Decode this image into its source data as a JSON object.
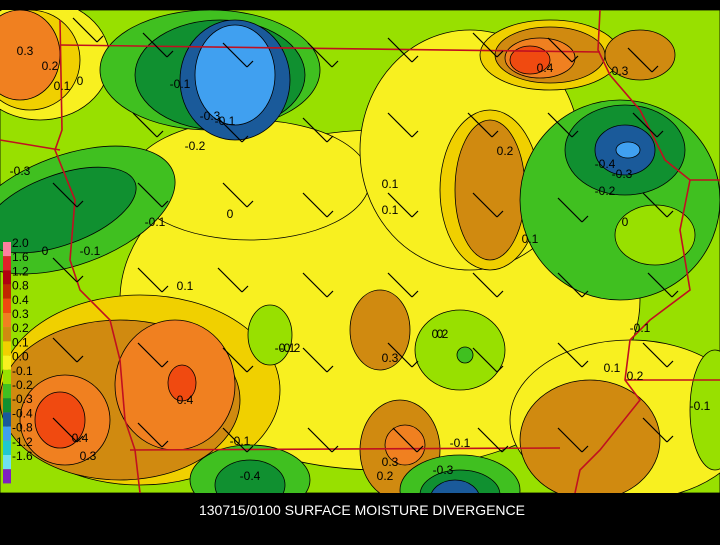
{
  "map": {
    "title": "130715/0100 SURFACE MOISTURE DIVERGENCE",
    "legend": [
      {
        "label": "2.0",
        "color": "#ff7f9f"
      },
      {
        "label": "1.6",
        "color": "#e0202a"
      },
      {
        "label": "1.2",
        "color": "#b00010"
      },
      {
        "label": "0.8",
        "color": "#c02800"
      },
      {
        "label": "0.4",
        "color": "#f04a10"
      },
      {
        "label": "0.3",
        "color": "#f08020"
      },
      {
        "label": "0.2",
        "color": "#d08a10"
      },
      {
        "label": "0.1",
        "color": "#f0d000"
      },
      {
        "label": "0.0",
        "color": "#f8f020"
      },
      {
        "label": "-0.1",
        "color": "#98e000"
      },
      {
        "label": "-0.2",
        "color": "#40c020"
      },
      {
        "label": "-0.3",
        "color": "#109030"
      },
      {
        "label": "-0.4",
        "color": "#1a5a9a"
      },
      {
        "label": "-0.8",
        "color": "#40a0f0"
      },
      {
        "label": "-1.2",
        "color": "#20c8d0"
      },
      {
        "label": "-1.6",
        "color": "#70e0f0"
      }
    ],
    "contour_labels": [
      "0.3",
      "0.2",
      "0.1",
      "0",
      "-0.1",
      "-0.3",
      "-0.1",
      "-0.2",
      "-0.3",
      "0",
      "-0.1",
      "0.4",
      "0.3",
      "0.2",
      "-0.4",
      "-0.3",
      "-0.2",
      "0",
      "0.1",
      "0.1",
      "0",
      "-0.1",
      "0.1",
      "0.1",
      "-0.2",
      "0.3",
      "-0.1",
      "0.2",
      "0",
      "0.4",
      "0.4",
      "0.3",
      "-0.1",
      "-0.4",
      "0.3",
      "0.2",
      "-0.1",
      "-0.3",
      "0.1",
      "0.2",
      "-0.1",
      "-0.1"
    ]
  }
}
